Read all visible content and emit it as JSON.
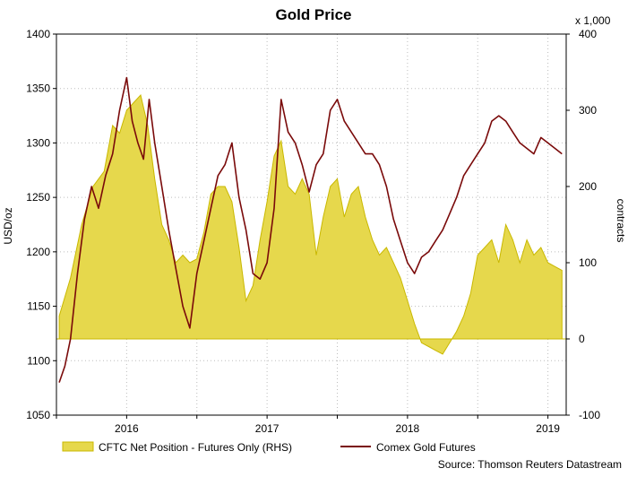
{
  "chart_data": {
    "type": "line",
    "title": "Gold Price",
    "ylabel": "USD/oz",
    "y2label": "contracts",
    "y2_multiplier_label": "x 1,000",
    "source": "Source: Thomson Reuters Datastream",
    "ylim": [
      1050,
      1400
    ],
    "y2lim": [
      -100,
      400
    ],
    "xlim": [
      2015.5,
      2019.13
    ],
    "yticks": [
      1050,
      1100,
      1150,
      1200,
      1250,
      1300,
      1350,
      1400
    ],
    "y2ticks": [
      -100,
      0,
      100,
      200,
      300,
      400
    ],
    "xticks": [
      {
        "pos": 2015.5,
        "label": ""
      },
      {
        "pos": 2016.0,
        "label": "2016"
      },
      {
        "pos": 2016.5,
        "label": ""
      },
      {
        "pos": 2017.0,
        "label": "2017"
      },
      {
        "pos": 2017.5,
        "label": ""
      },
      {
        "pos": 2018.0,
        "label": "2018"
      },
      {
        "pos": 2018.5,
        "label": ""
      },
      {
        "pos": 2019.0,
        "label": "2019"
      }
    ],
    "xtick_labels": [
      "2016",
      "2017",
      "2018",
      "2019"
    ],
    "grid": true,
    "legend": "bottom",
    "colors": {
      "net_position": "#e6d84c",
      "net_position_edge": "#c9b800",
      "gold": "#7a0a0a"
    },
    "series": [
      {
        "name": "CFTC Net Position - Futures Only (RHS)",
        "type": "area",
        "axis": "right",
        "x": [
          2015.52,
          2015.6,
          2015.68,
          2015.76,
          2015.84,
          2015.9,
          2015.95,
          2016.0,
          2016.05,
          2016.1,
          2016.15,
          2016.2,
          2016.25,
          2016.3,
          2016.35,
          2016.4,
          2016.45,
          2016.5,
          2016.55,
          2016.6,
          2016.65,
          2016.7,
          2016.75,
          2016.8,
          2016.85,
          2016.9,
          2016.95,
          2017.0,
          2017.05,
          2017.1,
          2017.15,
          2017.2,
          2017.25,
          2017.3,
          2017.35,
          2017.4,
          2017.45,
          2017.5,
          2017.55,
          2017.6,
          2017.65,
          2017.7,
          2017.75,
          2017.8,
          2017.85,
          2017.9,
          2017.95,
          2018.0,
          2018.05,
          2018.1,
          2018.15,
          2018.2,
          2018.25,
          2018.3,
          2018.35,
          2018.4,
          2018.45,
          2018.5,
          2018.55,
          2018.6,
          2018.65,
          2018.7,
          2018.75,
          2018.8,
          2018.85,
          2018.9,
          2018.95,
          2019.0,
          2019.05,
          2019.1
        ],
        "values": [
          30,
          80,
          150,
          200,
          220,
          280,
          270,
          300,
          310,
          320,
          280,
          210,
          150,
          130,
          100,
          110,
          100,
          105,
          140,
          190,
          200,
          200,
          180,
          120,
          50,
          70,
          130,
          180,
          240,
          260,
          200,
          190,
          210,
          190,
          110,
          160,
          200,
          210,
          160,
          190,
          200,
          160,
          130,
          110,
          120,
          100,
          80,
          50,
          20,
          -5,
          -10,
          -15,
          -20,
          -5,
          10,
          30,
          60,
          110,
          120,
          130,
          100,
          150,
          130,
          100,
          130,
          110,
          120,
          100,
          95,
          90
        ]
      },
      {
        "name": "Comex Gold Futures",
        "type": "line",
        "axis": "left",
        "x": [
          2015.52,
          2015.56,
          2015.6,
          2015.65,
          2015.7,
          2015.75,
          2015.8,
          2015.85,
          2015.9,
          2015.95,
          2016.0,
          2016.04,
          2016.08,
          2016.12,
          2016.16,
          2016.2,
          2016.25,
          2016.3,
          2016.35,
          2016.4,
          2016.45,
          2016.5,
          2016.55,
          2016.6,
          2016.65,
          2016.7,
          2016.75,
          2016.8,
          2016.85,
          2016.9,
          2016.95,
          2017.0,
          2017.05,
          2017.1,
          2017.15,
          2017.2,
          2017.25,
          2017.3,
          2017.35,
          2017.4,
          2017.45,
          2017.5,
          2017.55,
          2017.6,
          2017.65,
          2017.7,
          2017.75,
          2017.8,
          2017.85,
          2017.9,
          2017.95,
          2018.0,
          2018.05,
          2018.1,
          2018.15,
          2018.2,
          2018.25,
          2018.3,
          2018.35,
          2018.4,
          2018.45,
          2018.5,
          2018.55,
          2018.6,
          2018.65,
          2018.7,
          2018.75,
          2018.8,
          2018.85,
          2018.9,
          2018.95,
          2019.0,
          2019.05,
          2019.1
        ],
        "values": [
          1080,
          1095,
          1120,
          1180,
          1230,
          1260,
          1240,
          1270,
          1290,
          1330,
          1360,
          1320,
          1300,
          1285,
          1340,
          1300,
          1260,
          1220,
          1185,
          1150,
          1130,
          1180,
          1210,
          1240,
          1270,
          1280,
          1300,
          1250,
          1220,
          1180,
          1175,
          1190,
          1240,
          1340,
          1310,
          1300,
          1280,
          1255,
          1280,
          1290,
          1330,
          1340,
          1320,
          1310,
          1300,
          1290,
          1290,
          1280,
          1260,
          1230,
          1210,
          1190,
          1180,
          1195,
          1200,
          1210,
          1220,
          1235,
          1250,
          1270,
          1280,
          1290,
          1300,
          1320,
          1325,
          1320,
          1310,
          1300,
          1295,
          1290,
          1305,
          1300,
          1295,
          1290
        ]
      }
    ]
  }
}
